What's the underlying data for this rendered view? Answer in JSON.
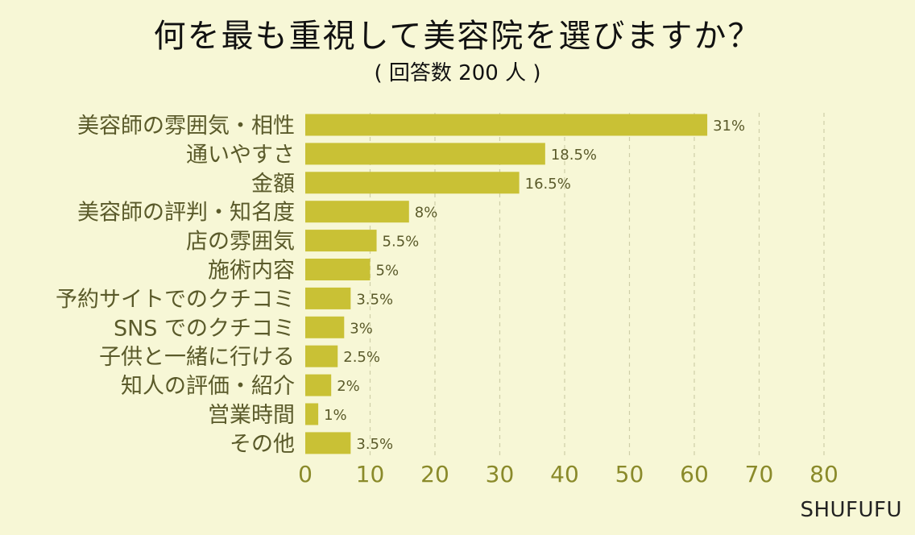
{
  "chart_data": {
    "type": "bar",
    "orientation": "horizontal",
    "title": "何を最も重視して美容院を選びますか？",
    "subtitle": "( 回答数 200 人 )",
    "categories": [
      "美容師の雰囲気・相性",
      "通いやすさ",
      "金額",
      "美容師の評判・知名度",
      "店の雰囲気",
      "施術内容",
      "予約サイトでのクチコミ",
      "SNS でのクチコミ",
      "子供と一緒に行ける",
      "知人の評価・紹介",
      "営業時間",
      "その他"
    ],
    "values": [
      62,
      37,
      33,
      16,
      11,
      10,
      7,
      6,
      5,
      4,
      2,
      7
    ],
    "data_labels": [
      "31%",
      "18.5%",
      "16.5%",
      "8%",
      "5.5%",
      "5%",
      "3.5%",
      "3%",
      "2.5%",
      "2%",
      "1%",
      "3.5%"
    ],
    "xlim": [
      0,
      80
    ],
    "xticks": [
      0,
      10,
      20,
      30,
      40,
      50,
      60,
      70,
      80
    ],
    "grid": "vertical dashed",
    "colors": {
      "bar": "#c9c135",
      "axis_text": "#8a8a2a",
      "label_text": "#5a5a2a",
      "grid": "#cfcfa8",
      "background": "#f7f7d6"
    }
  },
  "brand": "SHUFUFU"
}
